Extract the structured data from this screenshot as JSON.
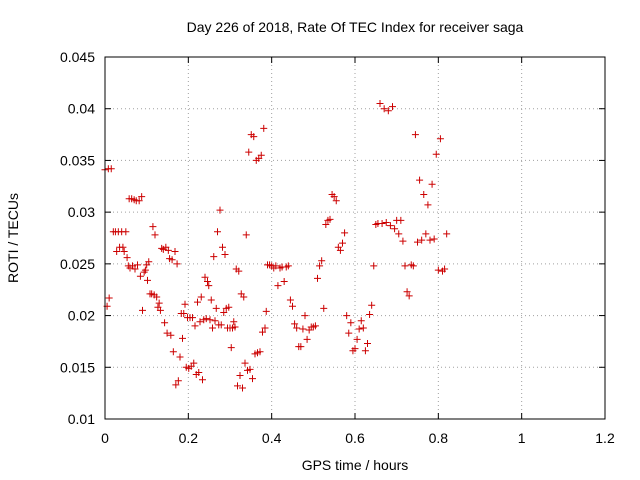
{
  "chart_data": {
    "type": "scatter",
    "title": "Day 226 of 2018, Rate Of TEC Index for receiver saga",
    "xlabel": "GPS time / hours",
    "ylabel": "ROTI / TECUs",
    "xlim": [
      0,
      1.2
    ],
    "ylim": [
      0.01,
      0.045
    ],
    "x_ticks": [
      "0",
      "0.2",
      "0.4",
      "0.6",
      "0.8",
      "1",
      "1.2"
    ],
    "y_ticks": [
      "0.01",
      "0.015",
      "0.02",
      "0.025",
      "0.03",
      "0.035",
      "0.04",
      "0.045"
    ],
    "grid": true,
    "marker": "+",
    "color": "#cc0000",
    "points": [
      [
        0.0,
        0.0341
      ],
      [
        0.005,
        0.0209
      ],
      [
        0.008,
        0.0342
      ],
      [
        0.01,
        0.0217
      ],
      [
        0.015,
        0.0342
      ],
      [
        0.02,
        0.0281
      ],
      [
        0.025,
        0.0281
      ],
      [
        0.028,
        0.0262
      ],
      [
        0.032,
        0.0281
      ],
      [
        0.035,
        0.0266
      ],
      [
        0.04,
        0.0281
      ],
      [
        0.043,
        0.0266
      ],
      [
        0.046,
        0.0262
      ],
      [
        0.05,
        0.0281
      ],
      [
        0.053,
        0.0256
      ],
      [
        0.056,
        0.0248
      ],
      [
        0.058,
        0.0313
      ],
      [
        0.06,
        0.0246
      ],
      [
        0.064,
        0.0313
      ],
      [
        0.066,
        0.0248
      ],
      [
        0.07,
        0.0312
      ],
      [
        0.072,
        0.0245
      ],
      [
        0.075,
        0.0311
      ],
      [
        0.078,
        0.0249
      ],
      [
        0.082,
        0.0311
      ],
      [
        0.085,
        0.0238
      ],
      [
        0.088,
        0.0315
      ],
      [
        0.09,
        0.0205
      ],
      [
        0.094,
        0.0242
      ],
      [
        0.097,
        0.0244
      ],
      [
        0.1,
        0.0249
      ],
      [
        0.102,
        0.0234
      ],
      [
        0.105,
        0.0252
      ],
      [
        0.108,
        0.0221
      ],
      [
        0.112,
        0.0221
      ],
      [
        0.115,
        0.0286
      ],
      [
        0.118,
        0.022
      ],
      [
        0.12,
        0.0278
      ],
      [
        0.124,
        0.0218
      ],
      [
        0.127,
        0.0208
      ],
      [
        0.13,
        0.0212
      ],
      [
        0.133,
        0.0205
      ],
      [
        0.136,
        0.0265
      ],
      [
        0.14,
        0.0264
      ],
      [
        0.143,
        0.0193
      ],
      [
        0.146,
        0.0266
      ],
      [
        0.149,
        0.0183
      ],
      [
        0.152,
        0.0263
      ],
      [
        0.155,
        0.0255
      ],
      [
        0.158,
        0.0181
      ],
      [
        0.161,
        0.0254
      ],
      [
        0.164,
        0.0165
      ],
      [
        0.168,
        0.0262
      ],
      [
        0.17,
        0.0133
      ],
      [
        0.173,
        0.025
      ],
      [
        0.176,
        0.0137
      ],
      [
        0.18,
        0.016
      ],
      [
        0.183,
        0.0202
      ],
      [
        0.186,
        0.0178
      ],
      [
        0.189,
        0.0202
      ],
      [
        0.192,
        0.0211
      ],
      [
        0.195,
        0.015
      ],
      [
        0.198,
        0.0198
      ],
      [
        0.201,
        0.0149
      ],
      [
        0.204,
        0.0198
      ],
      [
        0.207,
        0.0151
      ],
      [
        0.21,
        0.0198
      ],
      [
        0.213,
        0.0154
      ],
      [
        0.216,
        0.019
      ],
      [
        0.219,
        0.0143
      ],
      [
        0.222,
        0.0213
      ],
      [
        0.225,
        0.0145
      ],
      [
        0.228,
        0.0194
      ],
      [
        0.231,
        0.0218
      ],
      [
        0.234,
        0.0138
      ],
      [
        0.237,
        0.0196
      ],
      [
        0.24,
        0.0237
      ],
      [
        0.243,
        0.0197
      ],
      [
        0.246,
        0.0233
      ],
      [
        0.249,
        0.0229
      ],
      [
        0.252,
        0.0196
      ],
      [
        0.255,
        0.0215
      ],
      [
        0.258,
        0.0188
      ],
      [
        0.261,
        0.0257
      ],
      [
        0.264,
        0.0195
      ],
      [
        0.267,
        0.0207
      ],
      [
        0.27,
        0.0281
      ],
      [
        0.273,
        0.0191
      ],
      [
        0.276,
        0.0302
      ],
      [
        0.279,
        0.0191
      ],
      [
        0.282,
        0.0266
      ],
      [
        0.285,
        0.0203
      ],
      [
        0.288,
        0.0259
      ],
      [
        0.291,
        0.0207
      ],
      [
        0.294,
        0.0188
      ],
      [
        0.297,
        0.0208
      ],
      [
        0.3,
        0.0188
      ],
      [
        0.303,
        0.0169
      ],
      [
        0.306,
        0.0188
      ],
      [
        0.309,
        0.0194
      ],
      [
        0.312,
        0.0189
      ],
      [
        0.315,
        0.0245
      ],
      [
        0.318,
        0.0132
      ],
      [
        0.321,
        0.0243
      ],
      [
        0.324,
        0.0142
      ],
      [
        0.327,
        0.0221
      ],
      [
        0.33,
        0.013
      ],
      [
        0.333,
        0.0218
      ],
      [
        0.336,
        0.0154
      ],
      [
        0.339,
        0.0278
      ],
      [
        0.342,
        0.0147
      ],
      [
        0.345,
        0.0358
      ],
      [
        0.348,
        0.0148
      ],
      [
        0.351,
        0.0375
      ],
      [
        0.354,
        0.0139
      ],
      [
        0.357,
        0.0373
      ],
      [
        0.36,
        0.0163
      ],
      [
        0.363,
        0.035
      ],
      [
        0.366,
        0.0164
      ],
      [
        0.369,
        0.0352
      ],
      [
        0.372,
        0.0165
      ],
      [
        0.375,
        0.0355
      ],
      [
        0.378,
        0.0184
      ],
      [
        0.381,
        0.0381
      ],
      [
        0.384,
        0.0188
      ],
      [
        0.387,
        0.0204
      ],
      [
        0.39,
        0.0249
      ],
      [
        0.395,
        0.0249
      ],
      [
        0.4,
        0.0248
      ],
      [
        0.405,
        0.0246
      ],
      [
        0.41,
        0.0248
      ],
      [
        0.415,
        0.0229
      ],
      [
        0.42,
        0.0246
      ],
      [
        0.425,
        0.0247
      ],
      [
        0.43,
        0.0233
      ],
      [
        0.435,
        0.0247
      ],
      [
        0.44,
        0.0248
      ],
      [
        0.445,
        0.0215
      ],
      [
        0.45,
        0.0209
      ],
      [
        0.455,
        0.0192
      ],
      [
        0.46,
        0.0188
      ],
      [
        0.465,
        0.017
      ],
      [
        0.47,
        0.017
      ],
      [
        0.475,
        0.0187
      ],
      [
        0.48,
        0.02
      ],
      [
        0.485,
        0.0177
      ],
      [
        0.49,
        0.0186
      ],
      [
        0.495,
        0.0189
      ],
      [
        0.5,
        0.0189
      ],
      [
        0.505,
        0.019
      ],
      [
        0.51,
        0.0236
      ],
      [
        0.515,
        0.0248
      ],
      [
        0.52,
        0.0253
      ],
      [
        0.525,
        0.0207
      ],
      [
        0.53,
        0.0288
      ],
      [
        0.535,
        0.0292
      ],
      [
        0.54,
        0.0293
      ],
      [
        0.545,
        0.0317
      ],
      [
        0.55,
        0.0315
      ],
      [
        0.555,
        0.0311
      ],
      [
        0.56,
        0.0266
      ],
      [
        0.565,
        0.0263
      ],
      [
        0.57,
        0.027
      ],
      [
        0.575,
        0.028
      ],
      [
        0.58,
        0.02
      ],
      [
        0.585,
        0.0183
      ],
      [
        0.59,
        0.0193
      ],
      [
        0.595,
        0.0166
      ],
      [
        0.6,
        0.0168
      ],
      [
        0.605,
        0.0177
      ],
      [
        0.61,
        0.0187
      ],
      [
        0.615,
        0.0195
      ],
      [
        0.62,
        0.0188
      ],
      [
        0.625,
        0.0166
      ],
      [
        0.63,
        0.0173
      ],
      [
        0.635,
        0.0201
      ],
      [
        0.64,
        0.021
      ],
      [
        0.645,
        0.0248
      ],
      [
        0.65,
        0.0288
      ],
      [
        0.655,
        0.0289
      ],
      [
        0.66,
        0.0405
      ],
      [
        0.665,
        0.0289
      ],
      [
        0.67,
        0.04
      ],
      [
        0.675,
        0.029
      ],
      [
        0.68,
        0.0398
      ],
      [
        0.685,
        0.0287
      ],
      [
        0.69,
        0.0402
      ],
      [
        0.695,
        0.0284
      ],
      [
        0.7,
        0.0292
      ],
      [
        0.705,
        0.0279
      ],
      [
        0.71,
        0.0292
      ],
      [
        0.715,
        0.0272
      ],
      [
        0.72,
        0.0248
      ],
      [
        0.725,
        0.0223
      ],
      [
        0.73,
        0.0219
      ],
      [
        0.735,
        0.0249
      ],
      [
        0.74,
        0.0248
      ],
      [
        0.745,
        0.0375
      ],
      [
        0.75,
        0.0271
      ],
      [
        0.755,
        0.0331
      ],
      [
        0.76,
        0.0273
      ],
      [
        0.765,
        0.0317
      ],
      [
        0.77,
        0.0279
      ],
      [
        0.775,
        0.0307
      ],
      [
        0.78,
        0.0273
      ],
      [
        0.785,
        0.0327
      ],
      [
        0.79,
        0.0274
      ],
      [
        0.795,
        0.0356
      ],
      [
        0.8,
        0.0244
      ],
      [
        0.805,
        0.0371
      ],
      [
        0.81,
        0.0243
      ],
      [
        0.815,
        0.0245
      ],
      [
        0.82,
        0.0279
      ]
    ]
  }
}
